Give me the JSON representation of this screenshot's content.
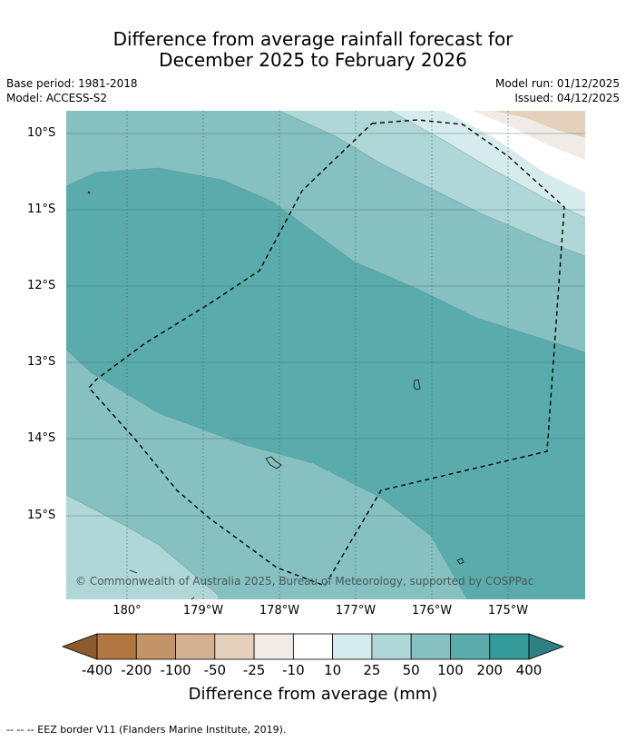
{
  "title": {
    "line1": "Difference from average rainfall forecast for",
    "line2": "December 2025 to February 2026"
  },
  "meta": {
    "base_period": "Base period: 1981-2018",
    "model": "Model: ACCESS-S2",
    "model_run": "Model run: 01/12/2025",
    "issued": "Issued: 04/12/2025"
  },
  "map": {
    "lat_labels": [
      "10°S",
      "11°S",
      "12°S",
      "13°S",
      "14°S",
      "15°S"
    ],
    "lon_labels": [
      "180°",
      "179°W",
      "178°W",
      "177°W",
      "176°W",
      "175°W"
    ],
    "copyright": "© Commonwealth of Australia 2025, Bureau of Meteorology, supported by COSPPac"
  },
  "colorbar": {
    "labels": [
      "-400",
      "-200",
      "-100",
      "-50",
      "-25",
      "-10",
      "10",
      "25",
      "50",
      "100",
      "200",
      "400"
    ],
    "colors": [
      "#8c5a2b",
      "#b07840",
      "#c39468",
      "#d4b291",
      "#e5d0bc",
      "#f0ebe7",
      "#ffffff",
      "#d6ecec",
      "#b0d7d7",
      "#86c0c0",
      "#5aabab",
      "#349a9a",
      "#2e7f7f"
    ],
    "title": "Difference from average (mm)"
  },
  "footnote": "--  --  -- EEZ border V11 (Flanders Marine Institute, 2019)."
}
